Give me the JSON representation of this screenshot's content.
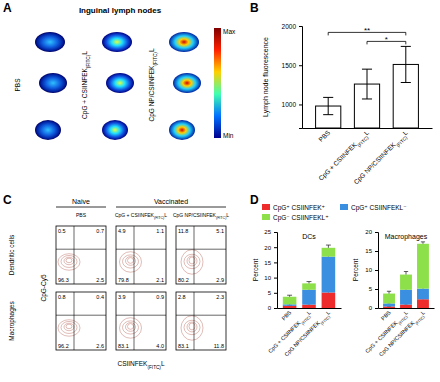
{
  "chart_data": [
    {
      "type": "image",
      "panel": "A",
      "title": "Inguinal lymph nodes",
      "columns": [
        "PBS",
        "CpG + CSIINFEK(FITC)L",
        "CpG NP/CSIINFEK(FITC)L"
      ],
      "color_bar": {
        "max_label": "Max",
        "min_label": "Min"
      }
    },
    {
      "type": "bar",
      "panel": "B",
      "categories": [
        "PBS",
        "CpG + CSIINFEK(FITC)L",
        "CpG NP/CSIINFEK(FITC)L"
      ],
      "values": [
        980,
        1260,
        1510
      ],
      "errors": [
        110,
        190,
        230
      ],
      "color": "#ffffff",
      "y_label": "Lymph node fluorescence",
      "ylim": [
        700,
        2000
      ],
      "yticks": [
        1000,
        1500,
        2000
      ],
      "annotations": [
        {
          "text": "**",
          "between": [
            "PBS",
            "CpG NP/CSIINFEK(FITC)L"
          ]
        },
        {
          "text": "*",
          "between": [
            "CpG + CSIINFEK(FITC)L",
            "CpG NP/CSIINFEK(FITC)L"
          ]
        }
      ]
    },
    {
      "type": "contour",
      "panel": "C",
      "columns": [
        "PBS",
        "CpG + CSIINFEK(FITC)L",
        "CpG NP/CSIINFEK(FITC)L"
      ],
      "groups": [
        {
          "label": "Naive",
          "columns": [
            "PBS"
          ]
        },
        {
          "label": "Vaccinated",
          "columns": [
            "CpG + CSIINFEK(FITC)L",
            "CpG NP/CSIINFEK(FITC)L"
          ]
        }
      ],
      "rows": [
        "Dendritic cells",
        "Macrophages"
      ],
      "x_label": "CSIINFEK(FITC)L",
      "y_label": "CpG-Cy5",
      "cells": [
        [
          {
            "values": [
              0.5,
              0.7,
              96.3,
              2.5
            ]
          },
          {
            "values": [
              4.9,
              1.1,
              79.8,
              2.1
            ]
          },
          {
            "values": [
              11.8,
              5.1,
              80.2,
              2.9
            ]
          }
        ],
        [
          {
            "values": [
              0.8,
              0.4,
              96.2,
              2.6
            ]
          },
          {
            "values": [
              3.9,
              0.9,
              83.1,
              4.0
            ],
            "value_labels": [
              "3.9",
              "0.9",
              "83.1",
              "4.0"
            ]
          },
          {
            "values": [
              2.8,
              2.3,
              83.1,
              11.8
            ]
          }
        ]
      ]
    },
    {
      "type": "bar",
      "panel": "D",
      "stacked": true,
      "title": "DCs",
      "legend": "top",
      "categories": [
        "PBS",
        "CpG + CSIINFEK(FITC)L",
        "CpG NP/CSIINFEK(FITC)L"
      ],
      "y_label": "Percent",
      "ylim": [
        0,
        25
      ],
      "yticks": [
        0,
        5,
        10,
        15,
        20,
        25
      ],
      "series": [
        {
          "name": "CpG⁺ CSIINFEK⁺",
          "color": "#ee2c2c",
          "values": [
            0.7,
            1.1,
            5.1
          ],
          "errors": [
            0.2,
            0.3,
            0.9
          ]
        },
        {
          "name": "CpG⁺ CSIINFEKL⁻",
          "color": "#3b8fe0",
          "values": [
            0.5,
            4.9,
            11.8
          ],
          "errors": [
            0.3,
            1.2,
            2.5
          ]
        },
        {
          "name": "CpG⁻ CSIINFEKL⁺",
          "color": "#8ee04a",
          "values": [
            2.5,
            2.1,
            2.9
          ],
          "errors": [
            0.5,
            0.6,
            0.9
          ]
        }
      ]
    },
    {
      "type": "bar",
      "stacked": true,
      "title": "Macrophages",
      "categories": [
        "PBS",
        "CpG + CSIINFEK(FITC)L",
        "CpG NP/CSIINFEK(FITC)L"
      ],
      "y_label": "Percent",
      "ylim": [
        0,
        20
      ],
      "yticks": [
        0,
        5,
        10,
        15,
        20
      ],
      "series": [
        {
          "color": "#ee2c2c",
          "values": [
            0.4,
            0.9,
            2.3
          ],
          "errors": [
            0.1,
            0.2,
            0.4
          ]
        },
        {
          "color": "#3b8fe0",
          "values": [
            0.8,
            3.9,
            2.8
          ],
          "errors": [
            0.2,
            0.6,
            0.5
          ]
        },
        {
          "color": "#8ee04a",
          "values": [
            2.6,
            4.0,
            11.8
          ],
          "errors": [
            0.6,
            0.8,
            0.5
          ]
        }
      ]
    }
  ]
}
